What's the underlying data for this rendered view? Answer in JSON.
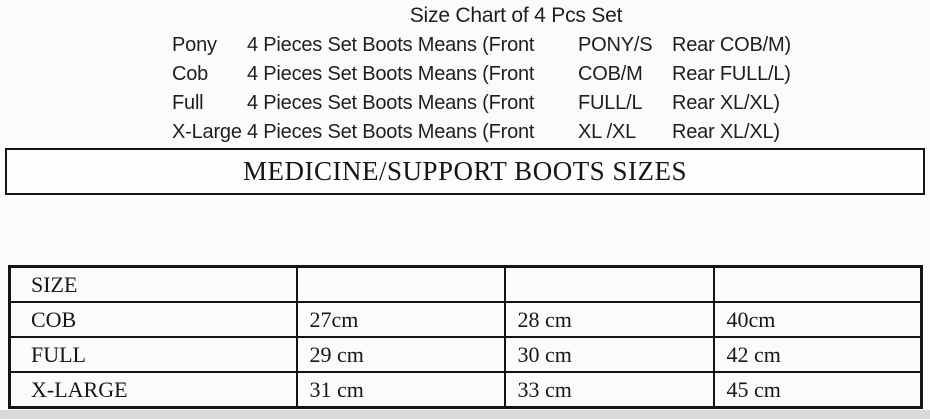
{
  "header": {
    "title": "Size Chart of 4 Pcs Set"
  },
  "set_lines": [
    {
      "size": "Pony",
      "means": "4 Pieces Set Boots Means (Front",
      "front": "PONY/S",
      "rear": "Rear COB/M)"
    },
    {
      "size": "Cob",
      "means": "4 Pieces Set Boots Means (Front",
      "front": "COB/M",
      "rear": "Rear FULL/L)"
    },
    {
      "size": "Full",
      "means": "4 Pieces Set Boots Means (Front",
      "front": "FULL/L",
      "rear": "Rear XL/XL)"
    },
    {
      "size": "X-Large",
      "means": "4 Pieces Set Boots Means (Front",
      "front": "XL /XL",
      "rear": "Rear XL/XL)"
    }
  ],
  "banner": {
    "heading": "MEDICINE/SUPPORT BOOTS SIZES"
  },
  "size_table": {
    "header_row": [
      "SIZE",
      "",
      "",
      ""
    ],
    "rows": [
      [
        "COB",
        "27cm",
        "28 cm",
        "40cm"
      ],
      [
        "FULL",
        "29 cm",
        "30 cm",
        "42 cm"
      ],
      [
        "X-LARGE",
        "31 cm",
        "33 cm",
        "45 cm"
      ]
    ]
  },
  "colors": {
    "text": "#1b1b1b",
    "border": "#141414",
    "background": "#fbfbfb",
    "bottom_shade": "#d9d9d9"
  }
}
